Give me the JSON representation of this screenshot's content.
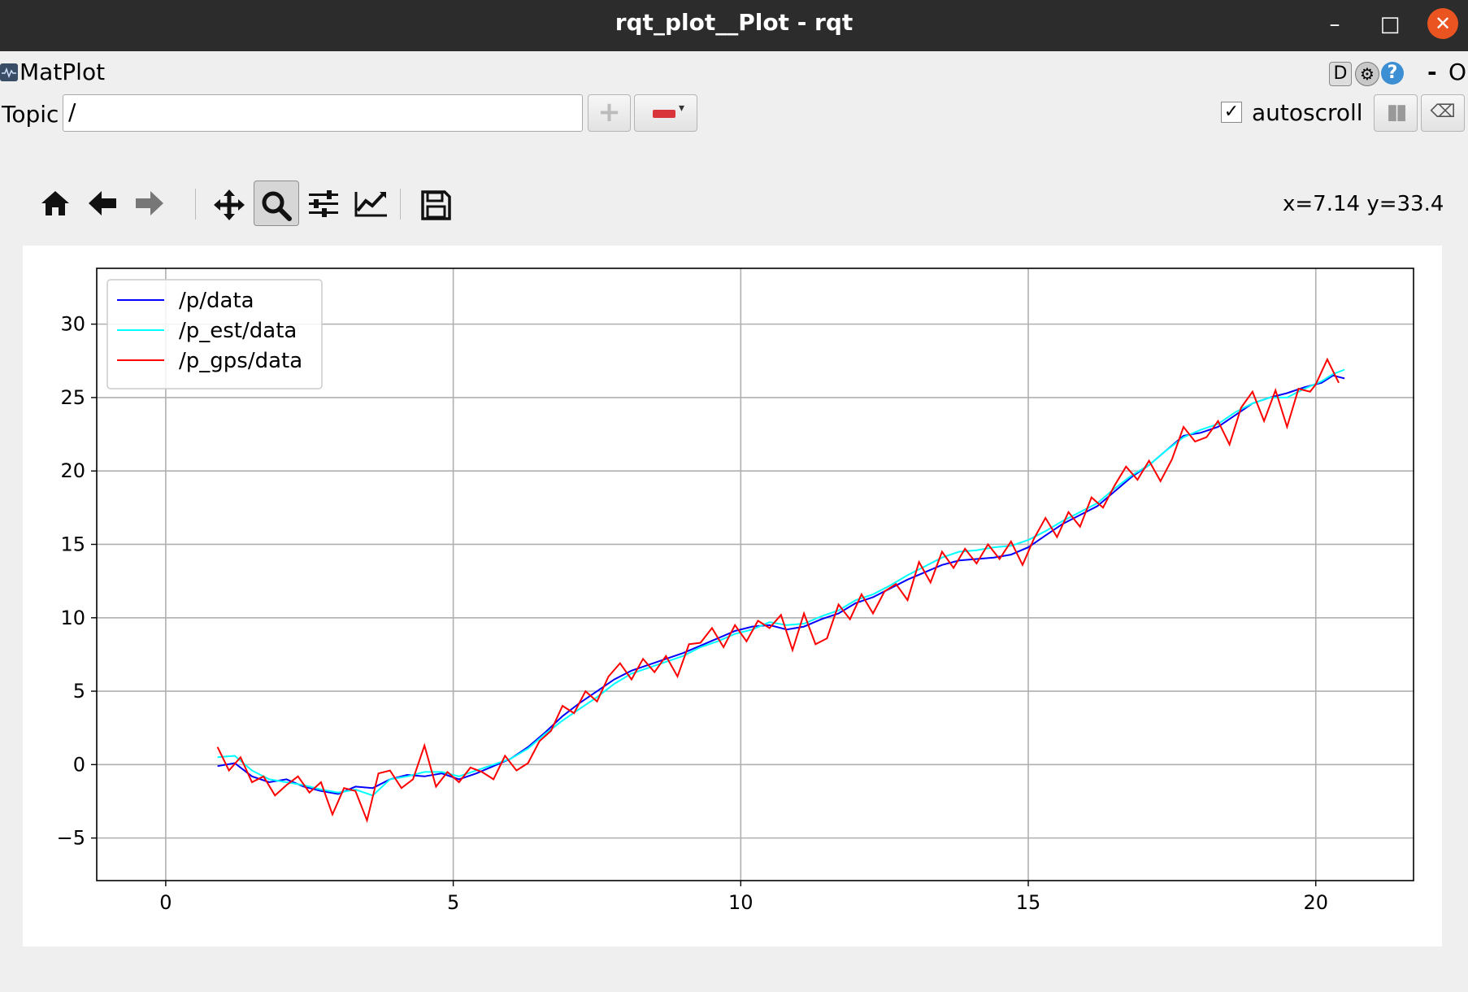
{
  "window": {
    "title": "rqt_plot__Plot - rqt",
    "minimize_glyph": "–",
    "maximize_glyph": "□",
    "close_glyph": "✕"
  },
  "plugin_bar": {
    "name": "MatPlot",
    "d_label": "D",
    "gear_icon": "gear-icon",
    "help_label": "?",
    "dash_label": "-",
    "close_label": "O"
  },
  "topic_bar": {
    "topic_label": "Topic",
    "topic_value": "/",
    "add_icon": "plus-icon",
    "remove_icon": "minus-dropdown-icon",
    "autoscroll_label": "autoscroll",
    "autoscroll_checked": true,
    "pause_icon": "pause-icon",
    "clear_icon": "clear-icon"
  },
  "toolbar": {
    "buttons": [
      "home-icon",
      "back-arrow-icon",
      "forward-arrow-icon",
      "pan-icon",
      "zoom-icon",
      "subplots-icon",
      "customize-icon",
      "save-icon"
    ],
    "active": "zoom-icon",
    "coords": "x=7.14 y=33.4"
  },
  "colors": {
    "p": "#0000ff",
    "p_est": "#00ffff",
    "p_gps": "#ff0000"
  },
  "chart_data": {
    "type": "line",
    "title": "",
    "xlabel": "",
    "ylabel": "",
    "xlim": [
      -1.2,
      21.7
    ],
    "ylim": [
      -7.9,
      33.8
    ],
    "xticks": [
      0,
      5,
      10,
      15,
      20
    ],
    "xtick_labels": [
      "0",
      "5",
      "10",
      "15",
      "20"
    ],
    "yticks": [
      -5,
      0,
      5,
      10,
      15,
      20,
      25,
      30
    ],
    "ytick_labels": [
      "−5",
      "0",
      "5",
      "10",
      "15",
      "20",
      "25",
      "30"
    ],
    "grid": true,
    "legend_position": "upper-left",
    "series": [
      {
        "name": "/p/data",
        "color": "#0000ff",
        "x": [
          0.9,
          1.2,
          1.5,
          1.8,
          2.1,
          2.4,
          2.7,
          3.0,
          3.3,
          3.6,
          3.9,
          4.2,
          4.5,
          4.8,
          5.1,
          5.4,
          5.7,
          6.0,
          6.3,
          6.6,
          6.9,
          7.2,
          7.5,
          7.8,
          8.1,
          8.4,
          8.7,
          9.0,
          9.3,
          9.6,
          9.9,
          10.2,
          10.5,
          10.8,
          11.1,
          11.4,
          11.7,
          12.0,
          12.3,
          12.6,
          12.9,
          13.2,
          13.5,
          13.8,
          14.1,
          14.4,
          14.7,
          15.0,
          15.3,
          15.6,
          15.9,
          16.2,
          16.5,
          16.8,
          17.1,
          17.4,
          17.7,
          18.0,
          18.3,
          18.6,
          18.9,
          19.2,
          19.5,
          19.8,
          20.1,
          20.3,
          20.5
        ],
        "values": [
          -0.1,
          0.1,
          -0.8,
          -1.2,
          -1.0,
          -1.5,
          -1.8,
          -2.0,
          -1.5,
          -1.6,
          -1.0,
          -0.7,
          -0.8,
          -0.6,
          -1.0,
          -0.6,
          -0.1,
          0.4,
          1.2,
          2.2,
          3.3,
          4.2,
          5.0,
          5.8,
          6.4,
          6.8,
          7.2,
          7.6,
          8.1,
          8.6,
          9.1,
          9.4,
          9.5,
          9.2,
          9.4,
          9.9,
          10.3,
          11.0,
          11.4,
          12.0,
          12.6,
          13.1,
          13.6,
          13.9,
          14.0,
          14.1,
          14.3,
          14.8,
          15.6,
          16.4,
          17.0,
          17.6,
          18.6,
          19.6,
          20.4,
          21.4,
          22.4,
          22.6,
          23.0,
          23.8,
          24.6,
          25.0,
          25.3,
          25.7,
          26.0,
          26.5,
          26.3
        ]
      },
      {
        "name": "/p_est/data",
        "color": "#00ffff",
        "x": [
          0.9,
          1.2,
          1.5,
          1.8,
          2.1,
          2.4,
          2.7,
          3.0,
          3.3,
          3.6,
          3.9,
          4.2,
          4.5,
          4.8,
          5.1,
          5.4,
          5.7,
          6.0,
          6.3,
          6.6,
          6.9,
          7.2,
          7.5,
          7.8,
          8.1,
          8.4,
          8.7,
          9.0,
          9.3,
          9.6,
          9.9,
          10.2,
          10.5,
          10.8,
          11.1,
          11.4,
          11.7,
          12.0,
          12.3,
          12.6,
          12.9,
          13.2,
          13.5,
          13.8,
          14.1,
          14.4,
          14.7,
          15.0,
          15.3,
          15.6,
          15.9,
          16.2,
          16.5,
          16.8,
          17.1,
          17.4,
          17.7,
          18.0,
          18.3,
          18.6,
          18.9,
          19.2,
          19.5,
          19.8,
          20.1,
          20.3,
          20.5
        ],
        "values": [
          0.5,
          0.6,
          -0.4,
          -1.0,
          -1.2,
          -1.4,
          -1.7,
          -1.9,
          -1.7,
          -2.1,
          -1.0,
          -0.8,
          -0.5,
          -0.5,
          -0.8,
          -0.4,
          0.0,
          0.4,
          1.1,
          2.1,
          3.0,
          3.8,
          4.6,
          5.5,
          6.2,
          6.6,
          7.0,
          7.4,
          8.0,
          8.4,
          8.9,
          9.2,
          9.7,
          9.5,
          9.6,
          10.1,
          10.5,
          11.2,
          11.6,
          12.2,
          12.9,
          13.5,
          14.1,
          14.5,
          14.6,
          14.8,
          14.9,
          15.3,
          15.9,
          16.6,
          17.2,
          17.8,
          18.8,
          19.7,
          20.4,
          21.4,
          22.3,
          22.8,
          23.2,
          24.0,
          24.6,
          25.0,
          25.0,
          25.6,
          26.1,
          26.6,
          26.9
        ]
      },
      {
        "name": "/p_gps/data",
        "color": "#ff0000",
        "x": [
          0.9,
          1.1,
          1.3,
          1.5,
          1.7,
          1.9,
          2.1,
          2.3,
          2.5,
          2.7,
          2.9,
          3.1,
          3.3,
          3.5,
          3.7,
          3.9,
          4.1,
          4.3,
          4.5,
          4.7,
          4.9,
          5.1,
          5.3,
          5.5,
          5.7,
          5.9,
          6.1,
          6.3,
          6.5,
          6.7,
          6.9,
          7.1,
          7.3,
          7.5,
          7.7,
          7.9,
          8.1,
          8.3,
          8.5,
          8.7,
          8.9,
          9.1,
          9.3,
          9.5,
          9.7,
          9.9,
          10.1,
          10.3,
          10.5,
          10.7,
          10.9,
          11.1,
          11.3,
          11.5,
          11.7,
          11.9,
          12.1,
          12.3,
          12.5,
          12.7,
          12.9,
          13.1,
          13.3,
          13.5,
          13.7,
          13.9,
          14.1,
          14.3,
          14.5,
          14.7,
          14.9,
          15.1,
          15.3,
          15.5,
          15.7,
          15.9,
          16.1,
          16.3,
          16.5,
          16.7,
          16.9,
          17.1,
          17.3,
          17.5,
          17.7,
          17.9,
          18.1,
          18.3,
          18.5,
          18.7,
          18.9,
          19.1,
          19.3,
          19.5,
          19.7,
          19.9,
          20.0,
          20.2,
          20.4
        ],
        "values": [
          1.2,
          -0.4,
          0.5,
          -1.2,
          -0.8,
          -2.1,
          -1.4,
          -0.8,
          -1.9,
          -1.2,
          -3.4,
          -1.6,
          -1.8,
          -3.8,
          -0.6,
          -0.4,
          -1.6,
          -1.0,
          1.3,
          -1.5,
          -0.5,
          -1.2,
          -0.2,
          -0.5,
          -1.0,
          0.6,
          -0.4,
          0.1,
          1.6,
          2.3,
          4.0,
          3.5,
          5.0,
          4.3,
          6.0,
          6.9,
          5.8,
          7.2,
          6.3,
          7.4,
          6.0,
          8.2,
          8.3,
          9.3,
          8.0,
          9.5,
          8.4,
          9.8,
          9.3,
          10.2,
          7.8,
          10.3,
          8.2,
          8.6,
          10.9,
          9.9,
          11.6,
          10.3,
          11.8,
          12.3,
          11.2,
          13.8,
          12.4,
          14.5,
          13.4,
          14.7,
          13.7,
          15.0,
          14.0,
          15.2,
          13.6,
          15.4,
          16.8,
          15.5,
          17.2,
          16.2,
          18.2,
          17.5,
          19.0,
          20.3,
          19.4,
          20.7,
          19.3,
          20.8,
          23.0,
          22.0,
          22.3,
          23.4,
          21.8,
          24.3,
          25.4,
          23.4,
          25.5,
          23.0,
          25.6,
          25.4,
          25.9,
          27.6,
          26.0
        ]
      }
    ]
  }
}
